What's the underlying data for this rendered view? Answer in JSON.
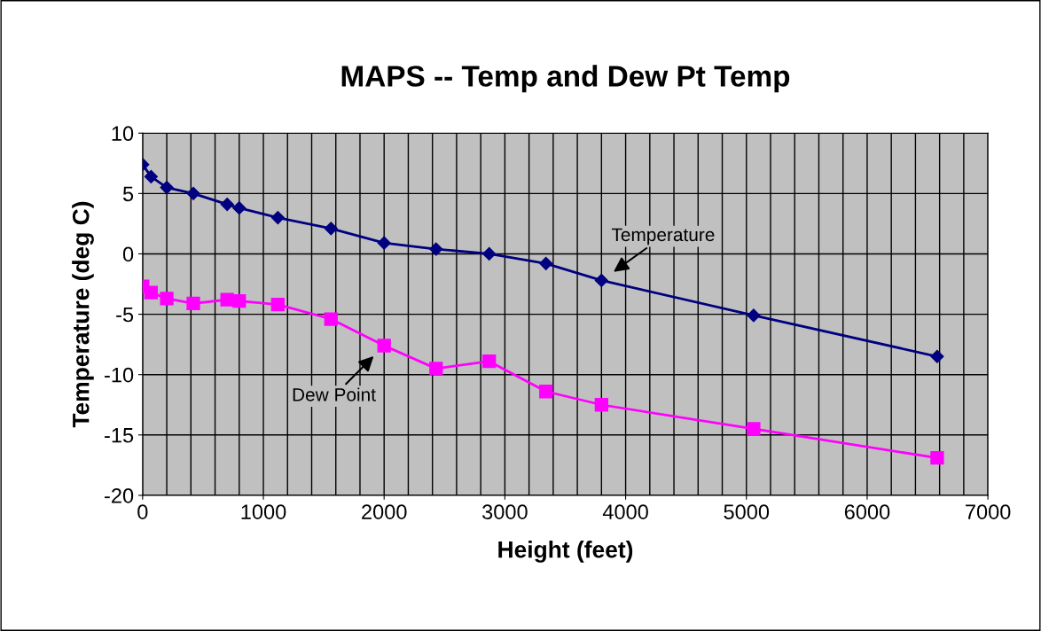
{
  "chart_data": {
    "type": "line",
    "title": "MAPS -- Temp and Dew Pt Temp",
    "xlabel": "Height (feet)",
    "ylabel": "Temperature (deg C)",
    "x": [
      0,
      70,
      200,
      420,
      700,
      800,
      1120,
      1560,
      2000,
      2430,
      2870,
      3340,
      3800,
      5060,
      6580
    ],
    "series": [
      {
        "name": "Temperature",
        "color": "#000080",
        "marker": "diamond",
        "values": [
          7.4,
          6.4,
          5.5,
          5.0,
          4.1,
          3.8,
          3.0,
          2.1,
          0.9,
          0.4,
          0.0,
          -0.8,
          -2.2,
          -5.1,
          -8.5
        ]
      },
      {
        "name": "Dew Point",
        "color": "#ff00ff",
        "marker": "square",
        "values": [
          -2.7,
          -3.2,
          -3.7,
          -4.1,
          -3.8,
          -3.9,
          -4.2,
          -5.4,
          -7.6,
          -9.5,
          -8.9,
          -11.4,
          -12.5,
          -14.5,
          -16.9
        ]
      }
    ],
    "xlim": [
      0,
      7000
    ],
    "xticks": [
      0,
      1000,
      2000,
      3000,
      4000,
      5000,
      6000,
      7000
    ],
    "ylim": [
      -20,
      10
    ],
    "yticks": [
      -20,
      -15,
      -10,
      -5,
      0,
      5,
      10
    ],
    "grid": true,
    "legend": false,
    "line_style": "solid"
  }
}
